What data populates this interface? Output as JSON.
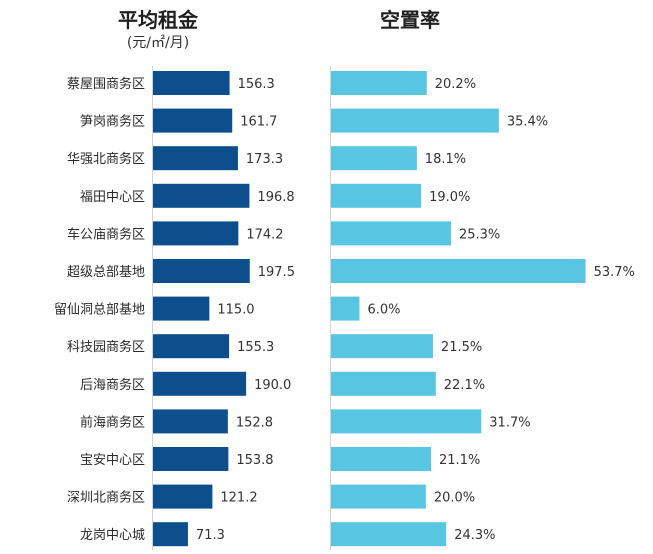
{
  "chart_data": {
    "type": "bar",
    "orientation": "horizontal",
    "categories": [
      "蔡屋围商务区",
      "笋岗商务区",
      "华强北商务区",
      "福田中心区",
      "车公庙商务区",
      "超级总部基地",
      "留仙洞总部基地",
      "科技园商务区",
      "后海商务区",
      "前海商务区",
      "宝安中心区",
      "深圳北商务区",
      "龙岗中心城"
    ],
    "panels": [
      {
        "title": "平均租金",
        "subtitle": "(元/㎡/月)",
        "color": "#0d4f8c",
        "values": [
          156.3,
          161.7,
          173.3,
          196.8,
          174.2,
          197.5,
          115.0,
          155.3,
          190.0,
          152.8,
          153.8,
          121.2,
          71.3
        ],
        "value_labels": [
          "156.3",
          "161.7",
          "173.3",
          "196.8",
          "174.2",
          "197.5",
          "115.0",
          "155.3",
          "190.0",
          "152.8",
          "153.8",
          "121.2",
          "71.3"
        ],
        "xlim": [
          0,
          200
        ]
      },
      {
        "title": "空置率",
        "subtitle": "",
        "color": "#58c5e2",
        "values": [
          20.2,
          35.4,
          18.1,
          19.0,
          25.3,
          53.7,
          6.0,
          21.5,
          22.1,
          31.7,
          21.1,
          20.0,
          24.3
        ],
        "value_labels": [
          "20.2%",
          "35.4%",
          "18.1%",
          "19.0%",
          "25.3%",
          "53.7%",
          "6.0%",
          "21.5%",
          "22.1%",
          "31.7%",
          "21.1%",
          "20.0%",
          "24.3%"
        ],
        "xlim": [
          0,
          54
        ]
      }
    ],
    "grid": false,
    "legend": "none"
  }
}
